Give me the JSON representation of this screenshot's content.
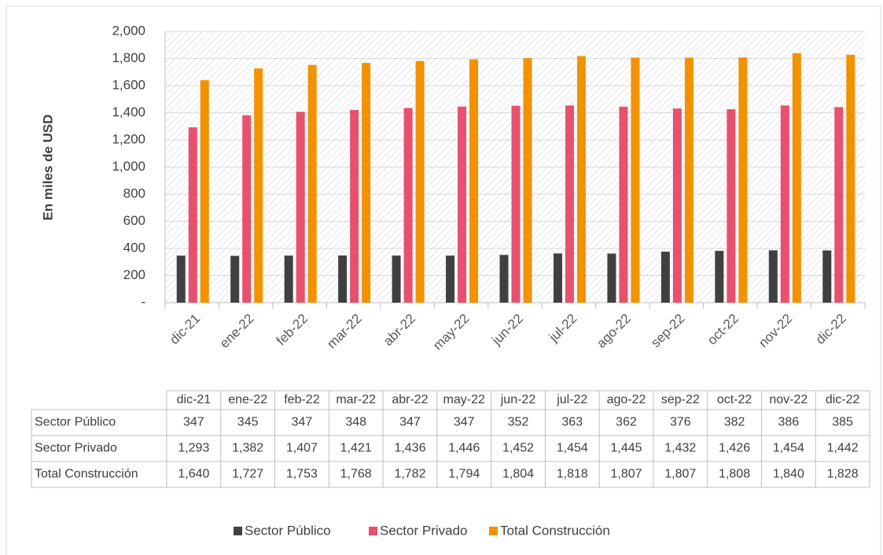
{
  "chart_data": {
    "type": "bar",
    "y_label": "En miles de USD",
    "categories": [
      "dic-21",
      "ene-22",
      "feb-22",
      "mar-22",
      "abr-22",
      "may-22",
      "jun-22",
      "jul-22",
      "ago-22",
      "sep-22",
      "oct-22",
      "nov-22",
      "dic-22"
    ],
    "series": [
      {
        "name": "Sector Público",
        "color": "#404040",
        "values": [
          347,
          345,
          347,
          348,
          347,
          347,
          352,
          363,
          362,
          376,
          382,
          386,
          385
        ]
      },
      {
        "name": "Sector Privado",
        "color": "#e8506e",
        "values": [
          1293,
          1382,
          1407,
          1421,
          1436,
          1446,
          1452,
          1454,
          1445,
          1432,
          1426,
          1454,
          1442
        ],
        "value_labels": [
          "1,293",
          "1,382",
          "1,407",
          "1,421",
          "1,436",
          "1,446",
          "1,452",
          "1,454",
          "1,445",
          "1,432",
          "1,426",
          "1,454",
          "1,442"
        ]
      },
      {
        "name": "Total Construcción",
        "color": "#f39200",
        "values": [
          1640,
          1727,
          1753,
          1768,
          1782,
          1794,
          1804,
          1818,
          1807,
          1807,
          1808,
          1840,
          1828
        ],
        "value_labels": [
          "1,640",
          "1,727",
          "1,753",
          "1,768",
          "1,782",
          "1,794",
          "1,804",
          "1,818",
          "1,807",
          "1,807",
          "1,808",
          "1,840",
          "1,828"
        ]
      }
    ],
    "ylim": [
      0,
      2000
    ],
    "yticks": [
      {
        "value": 0,
        "label": "-"
      },
      200,
      400,
      600,
      800,
      {
        "value": 1000,
        "label": "1,000"
      },
      {
        "value": 1200,
        "label": "1,200"
      },
      {
        "value": 1400,
        "label": "1,400"
      },
      {
        "value": 1600,
        "label": "1,600"
      },
      {
        "value": 1800,
        "label": "1,800"
      },
      {
        "value": 2000,
        "label": "2,000"
      }
    ],
    "grid": true,
    "legend": "bottom"
  }
}
